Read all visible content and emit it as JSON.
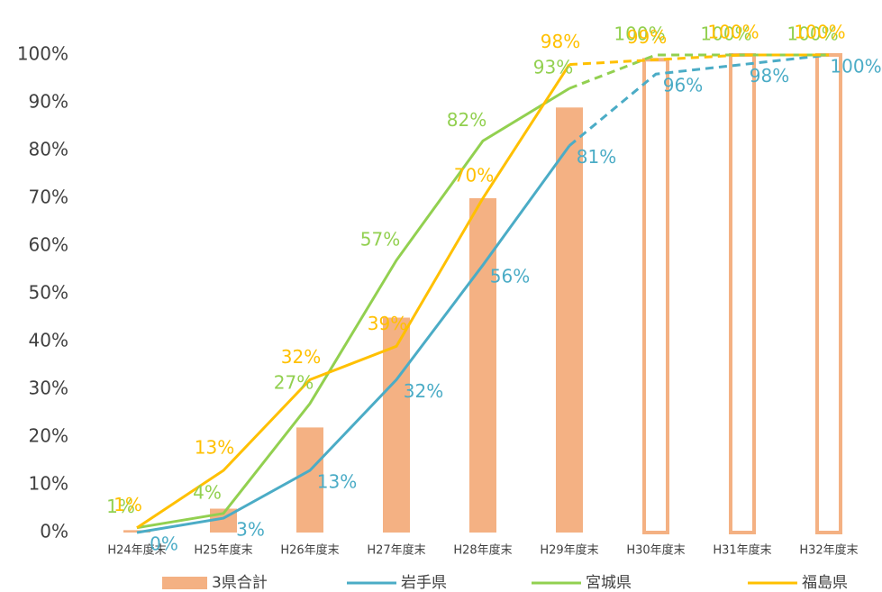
{
  "chart_data": {
    "type": "bar_line",
    "categories": [
      "H24年度末",
      "H25年度末",
      "H26年度末",
      "H27年度末",
      "H28年度末",
      "H29年度末",
      "H30年度末",
      "H31年度末",
      "H32年度末"
    ],
    "projected": [
      false,
      false,
      false,
      false,
      false,
      false,
      true,
      true,
      true
    ],
    "bar": {
      "name": "3県合計",
      "color": "#f4b183",
      "values": [
        0.5,
        5,
        22,
        45,
        70,
        89,
        99,
        100,
        100
      ]
    },
    "series": [
      {
        "name": "岩手県",
        "color": "#4bacc6",
        "values": [
          0,
          3,
          13,
          32,
          56,
          81,
          96,
          98,
          100
        ],
        "value_labels": [
          "0%",
          "3%",
          "13%",
          "32%",
          "56%",
          "81%",
          "96%",
          "98%",
          "100%"
        ]
      },
      {
        "name": "宮城県",
        "color": "#92d050",
        "values": [
          1,
          4,
          27,
          57,
          82,
          93,
          100,
          100,
          100
        ],
        "value_labels": [
          "1%",
          "4%",
          "27%",
          "57%",
          "82%",
          "93%",
          "100%",
          "100%",
          "100%"
        ]
      },
      {
        "name": "福島県",
        "color": "#ffc000",
        "values": [
          1,
          13,
          32,
          39,
          70,
          98,
          99,
          100,
          100
        ],
        "value_labels": [
          "1%",
          "13%",
          "32%",
          "39%",
          "70%",
          "98%",
          "99%",
          "100%",
          "100%"
        ]
      }
    ],
    "ylim": [
      0,
      100
    ],
    "yticks": [
      {
        "value": 0,
        "label": "0%"
      },
      {
        "value": 10,
        "label": "10%"
      },
      {
        "value": 20,
        "label": "20%"
      },
      {
        "value": 30,
        "label": "30%"
      },
      {
        "value": 40,
        "label": "40%"
      },
      {
        "value": 50,
        "label": "50%"
      },
      {
        "value": 60,
        "label": "60%"
      },
      {
        "value": 70,
        "label": "70%"
      },
      {
        "value": 80,
        "label": "80%"
      },
      {
        "value": 90,
        "label": "90%"
      },
      {
        "value": 100,
        "label": "100%"
      }
    ],
    "legend": "bottom"
  }
}
